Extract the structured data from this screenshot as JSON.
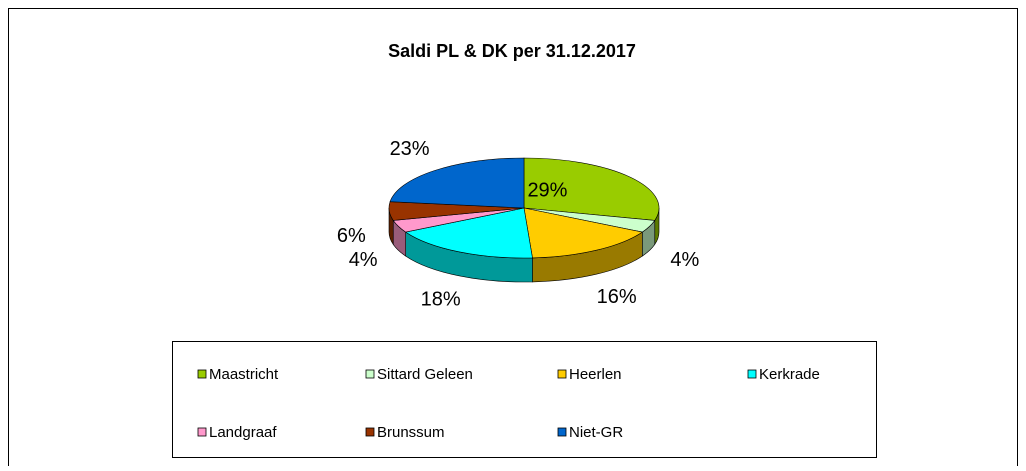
{
  "chart_data": {
    "type": "pie3d",
    "title": "Saldi PL & DK per 31.12.2017",
    "categories": [
      "Maastricht",
      "Sittard Geleen",
      "Heerlen",
      "Kerkrade",
      "Landgraaf",
      "Brunssum",
      "Niet-GR"
    ],
    "values": [
      29,
      4,
      16,
      18,
      4,
      6,
      23
    ],
    "value_labels": [
      "29%",
      "4%",
      "16%",
      "18%",
      "4%",
      "6%",
      "23%"
    ],
    "colors": [
      "#99cc00",
      "#ccffcc",
      "#ffcc00",
      "#00ffff",
      "#ff99cc",
      "#993300",
      "#0066cc"
    ],
    "legend": "bottom"
  }
}
